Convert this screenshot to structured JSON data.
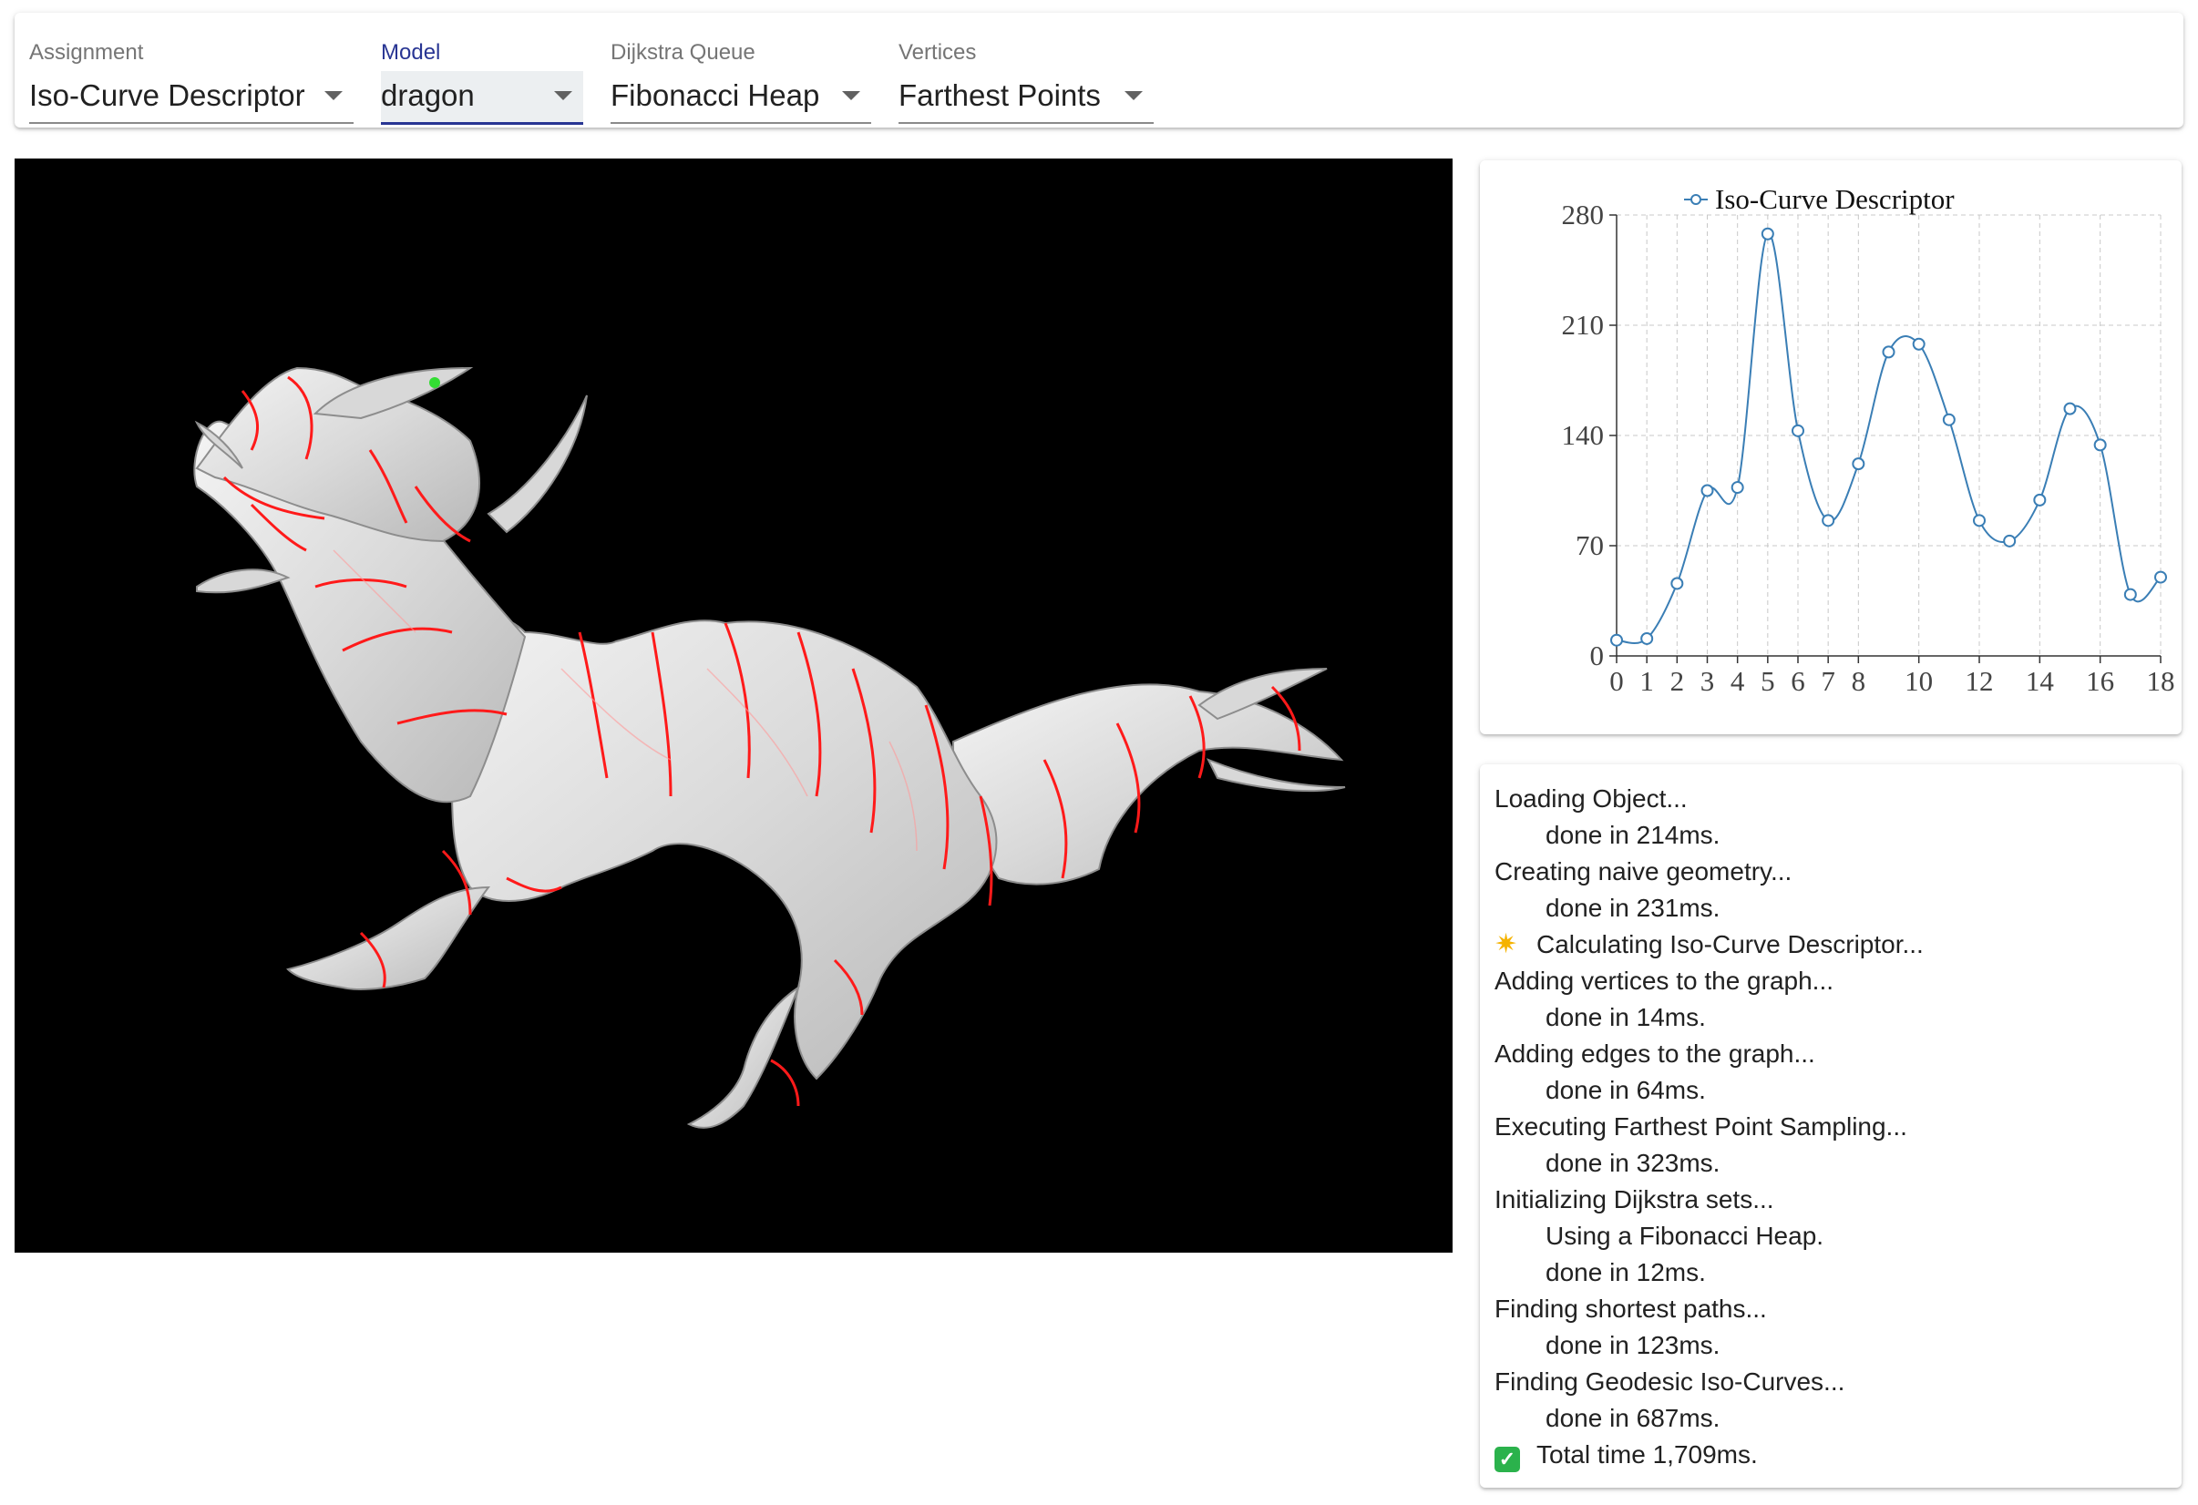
{
  "toolbar": {
    "fields": [
      {
        "label": "Assignment",
        "value": "Iso-Curve Descriptor"
      },
      {
        "label": "Model",
        "value": "dragon"
      },
      {
        "label": "Dijkstra Queue",
        "value": "Fibonacci Heap"
      },
      {
        "label": "Vertices",
        "value": "Farthest Points"
      }
    ]
  },
  "colors": {
    "accent": "#283593",
    "series": "#3a7eb5",
    "iso_curve": "#ff1a1a",
    "marker": "#33dd33"
  },
  "chart_data": {
    "type": "line",
    "legend": "Iso-Curve Descriptor",
    "legend_position": "top",
    "grid": true,
    "x": [
      0,
      1,
      2,
      3,
      4,
      5,
      6,
      7,
      8,
      9,
      10,
      11,
      12,
      13,
      14,
      15,
      16,
      17,
      18
    ],
    "x_ticks": [
      0,
      1,
      2,
      3,
      4,
      5,
      6,
      7,
      8,
      10,
      12,
      14,
      16,
      18
    ],
    "y_ticks": [
      0,
      70,
      140,
      210,
      280
    ],
    "ylim": [
      0,
      280
    ],
    "series": [
      {
        "name": "Iso-Curve Descriptor",
        "values": [
          10,
          11,
          46,
          105,
          107,
          268,
          143,
          86,
          122,
          193,
          198,
          150,
          86,
          73,
          99,
          157,
          134,
          39,
          50
        ]
      }
    ]
  },
  "log": [
    {
      "text": "Loading Object...",
      "indent": false,
      "icon": null
    },
    {
      "text": "done in 214ms.",
      "indent": true,
      "icon": null
    },
    {
      "text": "Creating naive geometry...",
      "indent": false,
      "icon": null
    },
    {
      "text": "done in 231ms.",
      "indent": true,
      "icon": null
    },
    {
      "text": "Calculating Iso-Curve Descriptor...",
      "indent": false,
      "icon": "sparkle-icon"
    },
    {
      "text": "Adding vertices to the graph...",
      "indent": false,
      "icon": null
    },
    {
      "text": "done in 14ms.",
      "indent": true,
      "icon": null
    },
    {
      "text": "Adding edges to the graph...",
      "indent": false,
      "icon": null
    },
    {
      "text": "done in 64ms.",
      "indent": true,
      "icon": null
    },
    {
      "text": "Executing Farthest Point Sampling...",
      "indent": false,
      "icon": null
    },
    {
      "text": "done in 323ms.",
      "indent": true,
      "icon": null
    },
    {
      "text": "Initializing Dijkstra sets...",
      "indent": false,
      "icon": null
    },
    {
      "text": "Using a Fibonacci Heap.",
      "indent": true,
      "icon": null
    },
    {
      "text": "done in 12ms.",
      "indent": true,
      "icon": null
    },
    {
      "text": "Finding shortest paths...",
      "indent": false,
      "icon": null
    },
    {
      "text": "done in 123ms.",
      "indent": true,
      "icon": null
    },
    {
      "text": "Finding Geodesic Iso-Curves...",
      "indent": false,
      "icon": null
    },
    {
      "text": "done in 687ms.",
      "indent": true,
      "icon": null
    },
    {
      "text": "Total time 1,709ms.",
      "indent": false,
      "icon": "check-icon"
    }
  ]
}
